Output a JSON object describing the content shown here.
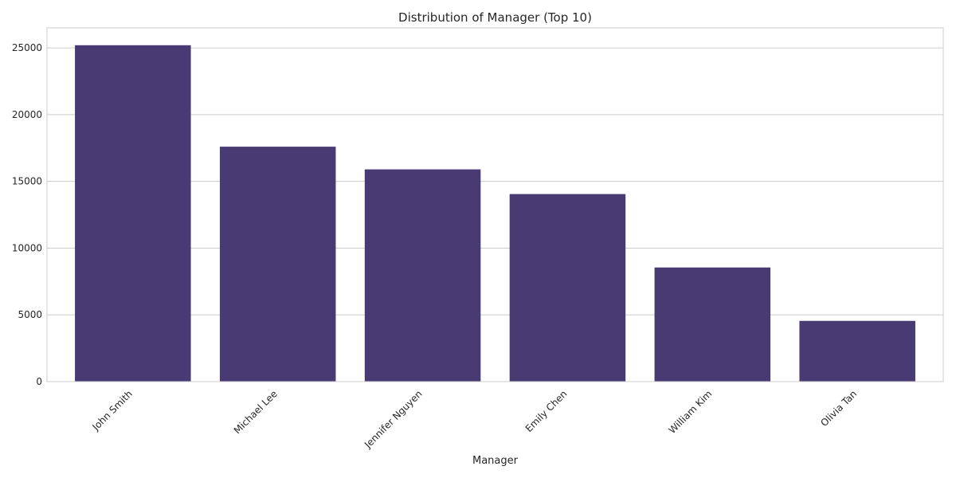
{
  "chart_data": {
    "type": "bar",
    "title": "Distribution of Manager (Top 10)",
    "xlabel": "Manager",
    "ylabel": "",
    "categories": [
      "John Smith",
      "Michael Lee",
      "Jennifer Nguyen",
      "Emily Chen",
      "William Kim",
      "Olivia Tan"
    ],
    "values": [
      25200,
      17600,
      15900,
      14050,
      8550,
      4550
    ],
    "ylim": [
      0,
      26500
    ],
    "yticks": [
      0,
      5000,
      10000,
      15000,
      20000,
      25000
    ],
    "grid": true,
    "legend": "none",
    "bar_color": "#483a73",
    "grid_color": "#cccccc",
    "frame_color": "#cccccc"
  }
}
